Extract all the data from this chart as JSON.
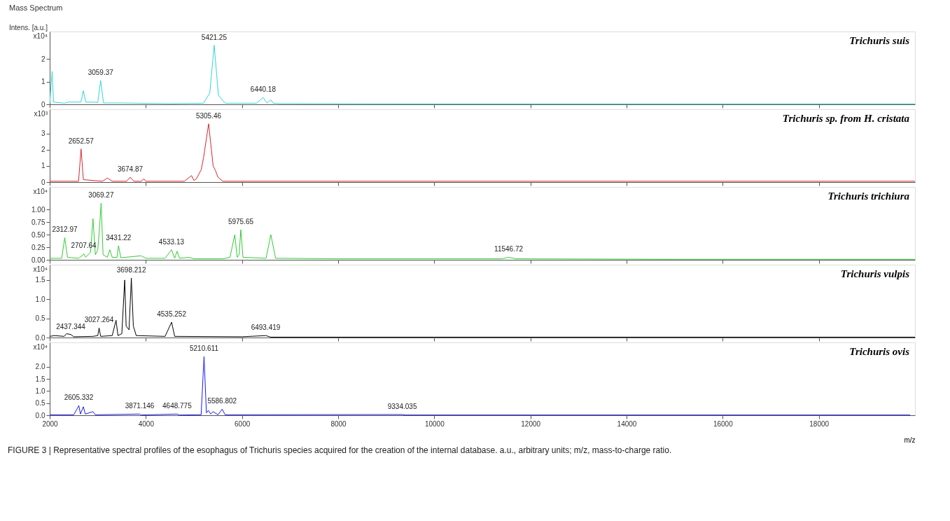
{
  "chart_data": [
    {
      "type": "line",
      "title": "Mass Spectrum",
      "ylabel": "Intens. [a.u.]",
      "annotations": [
        "x10⁴",
        {
          "text": "3059.37",
          "x": 3059.37,
          "y": 1.05
        },
        {
          "text": "5421.25",
          "x": 5421.25,
          "y": 2.6
        },
        {
          "text": "6440.18",
          "x": 6440.18,
          "y": 0.3
        }
      ],
      "xlim": [
        2000,
        20000
      ],
      "xticks": [
        2000,
        4000,
        6000,
        8000,
        10000,
        12000,
        14000,
        16000,
        18000
      ],
      "ylim": [
        0,
        3.2
      ],
      "yticks": [
        0,
        1,
        2
      ],
      "tick_labels": "y",
      "grid": false,
      "series": [
        {
          "name": "Trichuris suis",
          "color": "#33d6d6",
          "x": [
            2000,
            2050,
            2080,
            2300,
            2400,
            2650,
            2700,
            2750,
            2900,
            3000,
            3059.37,
            3120,
            3500,
            4500,
            5200,
            5330,
            5421.25,
            5510,
            5650,
            6300,
            6440.18,
            6520,
            6600,
            6650,
            6800,
            10000,
            15000,
            20000
          ],
          "values": [
            0.05,
            1.45,
            0.1,
            0.05,
            0.1,
            0.1,
            0.6,
            0.1,
            0.1,
            0.08,
            1.05,
            0.06,
            0.06,
            0.03,
            0.05,
            0.5,
            2.6,
            0.4,
            0.05,
            0.05,
            0.3,
            0.05,
            0.2,
            0.05,
            0.03,
            0.02,
            0.02,
            0.02
          ]
        }
      ]
    },
    {
      "type": "line",
      "annotations": [
        "x10³",
        {
          "text": "2652.57",
          "x": 2652.57,
          "y": 2.05
        },
        {
          "text": "3674.87",
          "x": 3674.87,
          "y": 0.3
        },
        {
          "text": "5305.46",
          "x": 5305.46,
          "y": 3.6
        }
      ],
      "xlim": [
        2000,
        20000
      ],
      "xticks": [
        2000,
        4000,
        6000,
        8000,
        10000,
        12000,
        14000,
        16000,
        18000
      ],
      "ylim": [
        0,
        4.5
      ],
      "yticks": [
        0,
        1,
        2,
        3
      ],
      "tick_labels": "y",
      "grid": false,
      "series": [
        {
          "name": "Trichuris sp. from H. cristata",
          "color": "#d9262e",
          "x": [
            2000,
            2400,
            2600,
            2652.57,
            2700,
            3100,
            3200,
            3300,
            3600,
            3674.87,
            3750,
            3900,
            3960,
            4000,
            4800,
            4950,
            5000,
            5050,
            5150,
            5200,
            5305.46,
            5400,
            5450,
            5500,
            5600,
            7000,
            10000,
            20000
          ],
          "values": [
            0.05,
            0.05,
            0.05,
            2.05,
            0.15,
            0.05,
            0.25,
            0.05,
            0.05,
            0.3,
            0.05,
            0.05,
            0.2,
            0.05,
            0.05,
            0.4,
            0.1,
            0.2,
            0.75,
            1.5,
            3.6,
            1.0,
            0.7,
            0.3,
            0.05,
            0.05,
            0.05,
            0.05
          ]
        }
      ]
    },
    {
      "type": "line",
      "annotations": [
        "x10⁴",
        {
          "text": "2312.97",
          "x": 2312.97,
          "y": 0.44
        },
        {
          "text": "2707.64",
          "x": 2707.64,
          "y": 0.12
        },
        {
          "text": "3069.27",
          "x": 3069.27,
          "y": 1.13
        },
        {
          "text": "3431.22",
          "x": 3431.22,
          "y": 0.28
        },
        {
          "text": "4533.13",
          "x": 4533.13,
          "y": 0.2
        },
        {
          "text": "5975.65",
          "x": 5975.65,
          "y": 0.6
        },
        {
          "text": "11546.72",
          "x": 11546.72,
          "y": 0.05
        }
      ],
      "xlim": [
        2000,
        20000
      ],
      "xticks": [
        2000,
        4000,
        6000,
        8000,
        10000,
        12000,
        14000,
        16000,
        18000
      ],
      "ylim": [
        0,
        1.45
      ],
      "yticks": [
        {
          "value": 0,
          "label": "0.00"
        },
        {
          "value": 0.25,
          "label": "0.25"
        },
        {
          "value": 0.5,
          "label": "0.50"
        },
        {
          "value": 0.75,
          "label": "0.75"
        },
        {
          "value": 1,
          "label": "1.00"
        }
      ],
      "tick_labels": "y",
      "grid": false,
      "series": [
        {
          "name": "Trichuris trichiura",
          "color": "#33cc33",
          "x": [
            2000,
            2250,
            2312.97,
            2370,
            2600,
            2700,
            2707.64,
            2750,
            2850,
            2900,
            2950,
            3000,
            3030,
            3069.27,
            3110,
            3200,
            3250,
            3300,
            3400,
            3431.22,
            3480,
            3900,
            4000,
            4400,
            4533.13,
            4600,
            4650,
            4700,
            4900,
            5000,
            5600,
            5750,
            5850,
            5900,
            5940,
            5975.65,
            6020,
            6500,
            6600,
            6700,
            8000,
            11400,
            11546.72,
            11700,
            15000,
            20000
          ],
          "values": [
            0.03,
            0.03,
            0.44,
            0.05,
            0.03,
            0.1,
            0.12,
            0.05,
            0.15,
            0.82,
            0.1,
            0.2,
            0.55,
            1.13,
            0.1,
            0.05,
            0.2,
            0.05,
            0.05,
            0.28,
            0.04,
            0.08,
            0.03,
            0.03,
            0.2,
            0.03,
            0.17,
            0.03,
            0.05,
            0.02,
            0.02,
            0.05,
            0.5,
            0.05,
            0.1,
            0.6,
            0.05,
            0.03,
            0.5,
            0.03,
            0.02,
            0.02,
            0.05,
            0.02,
            0.01,
            0.01
          ]
        }
      ]
    },
    {
      "type": "line",
      "annotations": [
        "x10⁴",
        {
          "text": "2437.344",
          "x": 2437.344,
          "y": 0.08
        },
        {
          "text": "3027.264",
          "x": 3027.264,
          "y": 0.25
        },
        {
          "text": "3698.212",
          "x": 3698.212,
          "y": 1.55
        },
        {
          "text": "4535.252",
          "x": 4535.252,
          "y": 0.4
        },
        {
          "text": "6493.419",
          "x": 6493.419,
          "y": 0.05
        }
      ],
      "xlim": [
        2000,
        20000
      ],
      "xticks": [
        2000,
        4000,
        6000,
        8000,
        10000,
        12000,
        14000,
        16000,
        18000
      ],
      "ylim": [
        0,
        1.9
      ],
      "yticks": [
        {
          "value": 0,
          "label": "0.0"
        },
        0.5,
        {
          "value": 1,
          "label": "1.0"
        },
        1.5
      ],
      "tick_labels": "y",
      "grid": false,
      "series": [
        {
          "name": "Trichuris vulpis",
          "color": "#000000",
          "x": [
            2000,
            2100,
            2300,
            2350,
            2437.344,
            2500,
            2900,
            3000,
            3027.264,
            3060,
            3300,
            3380,
            3420,
            3500,
            3560,
            3590,
            3650,
            3698.212,
            3740,
            3800,
            4400,
            4535.252,
            4600,
            6000,
            6493.419,
            6600,
            10000,
            20000
          ],
          "values": [
            0.03,
            0.05,
            0.03,
            0.1,
            0.08,
            0.02,
            0.03,
            0.05,
            0.25,
            0.03,
            0.05,
            0.45,
            0.05,
            0.1,
            1.5,
            0.3,
            0.2,
            1.55,
            0.3,
            0.05,
            0.03,
            0.4,
            0.03,
            0.02,
            0.05,
            0.01,
            0.01,
            0.01
          ]
        }
      ]
    },
    {
      "type": "line",
      "xlabel": "m/z",
      "annotations": [
        "x10⁴",
        "FIGURE 3 | Representative spectral profiles of the esophagus of Trichuris species acquired for the creation of the internal database. a.u., arbitrary units; m/z, mass-to-charge ratio.",
        {
          "text": "2605.332",
          "x": 2605.332,
          "y": 0.4
        },
        {
          "text": "3871.146",
          "x": 3871.146,
          "y": 0.05
        },
        {
          "text": "4648.775",
          "x": 4648.775,
          "y": 0.05
        },
        {
          "text": "5210.611",
          "x": 5210.611,
          "y": 2.42
        },
        {
          "text": "5586.802",
          "x": 5586.802,
          "y": 0.25
        },
        {
          "text": "9334.035",
          "x": 9334.035,
          "y": 0.03
        }
      ],
      "xlim": [
        2000,
        20000
      ],
      "xticks": [
        2000,
        4000,
        6000,
        8000,
        10000,
        12000,
        14000,
        16000,
        18000
      ],
      "ylim": [
        0,
        3.0
      ],
      "yticks": [
        {
          "value": 0,
          "label": "0.0"
        },
        0.5,
        {
          "value": 1,
          "label": "1.0"
        },
        1.5,
        {
          "value": 2,
          "label": "2.0"
        }
      ],
      "grid": false,
      "series": [
        {
          "name": "Trichuris ovis",
          "color": "#1a1aff",
          "x": [
            2000,
            2500,
            2580,
            2605.332,
            2640,
            2700,
            2740,
            2900,
            2950,
            3000,
            3871.146,
            3900,
            4648.775,
            4700,
            5150,
            5210.611,
            5260,
            5300,
            5350,
            5400,
            5500,
            5586.802,
            5650,
            9334.035,
            9400,
            19900
          ],
          "values": [
            0.02,
            0.02,
            0.3,
            0.4,
            0.05,
            0.35,
            0.05,
            0.15,
            0.02,
            0.02,
            0.05,
            0.01,
            0.05,
            0.01,
            0.02,
            2.42,
            0.1,
            0.2,
            0.05,
            0.15,
            0.02,
            0.25,
            0.02,
            0.03,
            0.01,
            0.01
          ]
        }
      ]
    }
  ]
}
